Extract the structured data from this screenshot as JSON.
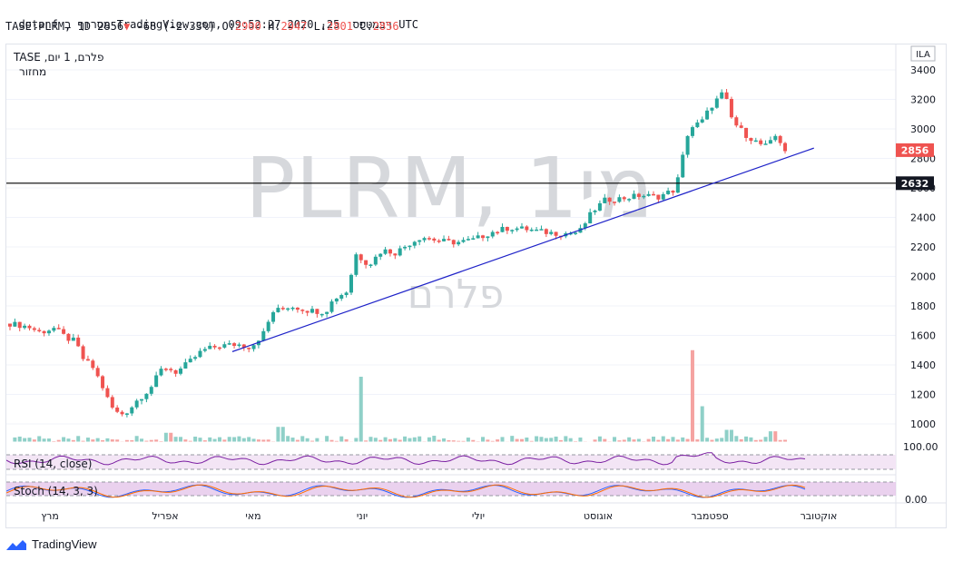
{
  "header": {
    "line1": "dotanf מסרוף ב-TradingView.com, רבמטפס  25, 2020 09:52:27 UTC",
    "symbol": "TASE:PLRM, 1D",
    "last": "2856",
    "change": "-68 (-2.33%)",
    "o_label": "O:",
    "o": "2900",
    "h_label": "H:",
    "h": "2947",
    "l_label": "L:",
    "l": "2801",
    "c_label": "C:",
    "c": "2856"
  },
  "legend": {
    "line1": "TASE ,פלרם, 1 יום",
    "line2": "מחזור"
  },
  "watermark": {
    "main": "PLRM, 1מי",
    "sub": "פלרם"
  },
  "currency_label": "ILA",
  "price_labels": {
    "last": "2856",
    "level": "2632"
  },
  "rsi": {
    "label": "RSI (14, close)",
    "axis": "100.00"
  },
  "stoch": {
    "label": "Stoch (14, 3, 3)",
    "axis": "0.00"
  },
  "footer": {
    "brand": "TradingView"
  },
  "colors": {
    "up": "#26a69a",
    "down": "#ef5350",
    "trend": "#1e22c8",
    "level": "#000000",
    "rsi_line": "#7b1fa2",
    "stoch_k": "#2962ff",
    "stoch_d": "#ff6d00"
  },
  "chart_data": {
    "type": "candlestick",
    "y_ticks": [
      3400,
      3200,
      3000,
      2800,
      2600,
      2400,
      2200,
      2000,
      1800,
      1600,
      1400,
      1200,
      1000
    ],
    "ylim": [
      880,
      3440
    ],
    "x_months": [
      "מרץ",
      "אפריל",
      "מאי",
      "יוני",
      "יולי",
      "אוגוסט",
      "ספטמבר",
      "אוקטובר"
    ],
    "horizontal_level": 2632,
    "last_price": 2856,
    "trendline": {
      "from": [
        0.258,
        1490
      ],
      "to": [
        0.922,
        2870
      ]
    },
    "price_close": [
      [
        0,
        1680
      ],
      [
        0.02,
        1660
      ],
      [
        0.035,
        1620
      ],
      [
        0.05,
        1650
      ],
      [
        0.065,
        1580
      ],
      [
        0.075,
        1560
      ],
      [
        0.082,
        1450
      ],
      [
        0.095,
        1380
      ],
      [
        0.105,
        1260
      ],
      [
        0.115,
        1120
      ],
      [
        0.125,
        1060
      ],
      [
        0.135,
        1090
      ],
      [
        0.145,
        1160
      ],
      [
        0.16,
        1240
      ],
      [
        0.175,
        1390
      ],
      [
        0.19,
        1350
      ],
      [
        0.205,
        1420
      ],
      [
        0.22,
        1500
      ],
      [
        0.24,
        1530
      ],
      [
        0.26,
        1540
      ],
      [
        0.275,
        1520
      ],
      [
        0.29,
        1620
      ],
      [
        0.3,
        1760
      ],
      [
        0.32,
        1800
      ],
      [
        0.34,
        1770
      ],
      [
        0.36,
        1760
      ],
      [
        0.37,
        1850
      ],
      [
        0.385,
        1900
      ],
      [
        0.395,
        2150
      ],
      [
        0.41,
        2080
      ],
      [
        0.425,
        2180
      ],
      [
        0.44,
        2160
      ],
      [
        0.455,
        2220
      ],
      [
        0.47,
        2270
      ],
      [
        0.49,
        2240
      ],
      [
        0.51,
        2230
      ],
      [
        0.53,
        2250
      ],
      [
        0.55,
        2300
      ],
      [
        0.57,
        2330
      ],
      [
        0.59,
        2320
      ],
      [
        0.61,
        2300
      ],
      [
        0.63,
        2290
      ],
      [
        0.65,
        2300
      ],
      [
        0.665,
        2440
      ],
      [
        0.68,
        2520
      ],
      [
        0.7,
        2530
      ],
      [
        0.72,
        2550
      ],
      [
        0.74,
        2540
      ],
      [
        0.76,
        2590
      ],
      [
        0.775,
        3000
      ],
      [
        0.79,
        3050
      ],
      [
        0.8,
        3150
      ],
      [
        0.815,
        3250
      ],
      [
        0.825,
        3050
      ],
      [
        0.84,
        2960
      ],
      [
        0.855,
        2900
      ],
      [
        0.865,
        2880
      ],
      [
        0.875,
        2960
      ],
      [
        0.885,
        2856
      ]
    ],
    "volume": [
      [
        0.18,
        940
      ],
      [
        0.31,
        980
      ],
      [
        0.4,
        1320
      ],
      [
        0.78,
        1500
      ],
      [
        0.79,
        1120
      ],
      [
        0.82,
        960
      ],
      [
        0.87,
        950
      ]
    ]
  }
}
